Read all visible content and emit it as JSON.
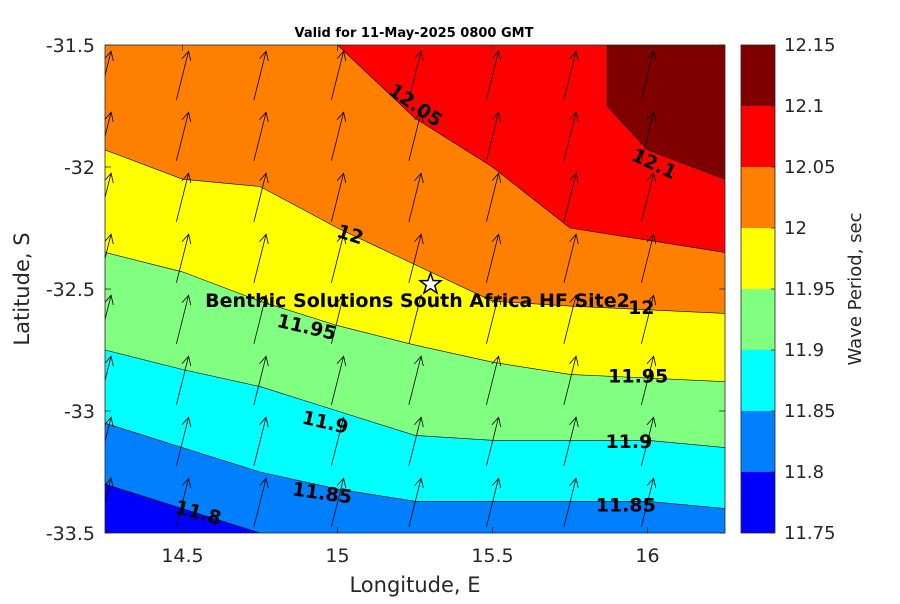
{
  "chart_data": {
    "type": "contour",
    "title": "Valid for 11-May-2025 0800 GMT",
    "xlabel": "Longitude, E",
    "ylabel": "Latitude, S",
    "colorbar_label": "Wave Period, sec",
    "xlim": [
      14.25,
      16.25
    ],
    "ylim": [
      -33.5,
      -31.5
    ],
    "xticks": [
      "14.5",
      "15",
      "15.5",
      "16"
    ],
    "yticks": [
      "-31.5",
      "-32",
      "-32.5",
      "-33",
      "-33.5"
    ],
    "colorbar_ticks": [
      "12.15",
      "12.1",
      "12.05",
      "12",
      "11.95",
      "11.9",
      "11.85",
      "11.8",
      "11.75"
    ],
    "levels": [
      11.75,
      11.8,
      11.85,
      11.9,
      11.95,
      12,
      12.05,
      12.1,
      12.15
    ],
    "level_colors": [
      "#0000ff",
      "#0080ff",
      "#00ffff",
      "#80ff80",
      "#ffff00",
      "#ff8000",
      "#ff0000",
      "#800000"
    ],
    "contours": [
      {
        "level": 11.8,
        "points": [
          [
            14.25,
            -33.3
          ],
          [
            14.75,
            -33.5
          ]
        ]
      },
      {
        "level": 11.85,
        "points": [
          [
            14.25,
            -33.05
          ],
          [
            14.5,
            -33.15
          ],
          [
            14.75,
            -33.25
          ],
          [
            15.0,
            -33.32
          ],
          [
            15.25,
            -33.37
          ],
          [
            15.5,
            -33.37
          ],
          [
            16.0,
            -33.37
          ],
          [
            16.25,
            -33.4
          ]
        ]
      },
      {
        "level": 11.9,
        "points": [
          [
            14.25,
            -32.75
          ],
          [
            14.5,
            -32.83
          ],
          [
            14.75,
            -32.9
          ],
          [
            15.0,
            -33.0
          ],
          [
            15.25,
            -33.1
          ],
          [
            15.5,
            -33.12
          ],
          [
            16.0,
            -33.12
          ],
          [
            16.25,
            -33.15
          ]
        ]
      },
      {
        "level": 11.95,
        "points": [
          [
            14.25,
            -32.35
          ],
          [
            14.5,
            -32.43
          ],
          [
            14.75,
            -32.55
          ],
          [
            15.0,
            -32.65
          ],
          [
            15.25,
            -32.73
          ],
          [
            15.5,
            -32.8
          ],
          [
            15.75,
            -32.85
          ],
          [
            16.25,
            -32.88
          ]
        ]
      },
      {
        "level": 12.0,
        "points": [
          [
            14.25,
            -31.93
          ],
          [
            14.5,
            -32.05
          ],
          [
            14.75,
            -32.08
          ],
          [
            15.0,
            -32.25
          ],
          [
            15.25,
            -32.4
          ],
          [
            15.5,
            -32.55
          ],
          [
            15.75,
            -32.57
          ],
          [
            16.25,
            -32.6
          ]
        ]
      },
      {
        "level": 12.05,
        "points": [
          [
            15.0,
            -31.5
          ],
          [
            15.25,
            -31.8
          ],
          [
            15.5,
            -32.0
          ],
          [
            15.75,
            -32.25
          ],
          [
            16.0,
            -32.3
          ],
          [
            16.25,
            -32.35
          ]
        ]
      },
      {
        "level": 12.1,
        "points": [
          [
            15.87,
            -31.5
          ],
          [
            15.87,
            -31.75
          ],
          [
            16.0,
            -31.93
          ],
          [
            16.25,
            -32.05
          ]
        ]
      }
    ],
    "contour_labels": [
      {
        "text": "12.05",
        "lon": 15.25,
        "lat": -31.75,
        "angle": 35
      },
      {
        "text": "12.1",
        "lon": 16.02,
        "lat": -31.99,
        "angle": 25
      },
      {
        "text": "12",
        "lon": 15.04,
        "lat": -32.28,
        "angle": 18
      },
      {
        "text": "12",
        "lon": 15.98,
        "lat": -32.58,
        "angle": 0
      },
      {
        "text": "11.95",
        "lon": 14.9,
        "lat": -32.66,
        "angle": 13
      },
      {
        "text": "11.95",
        "lon": 15.97,
        "lat": -32.86,
        "angle": 0
      },
      {
        "text": "11.9",
        "lon": 14.96,
        "lat": -33.05,
        "angle": 13
      },
      {
        "text": "11.9",
        "lon": 15.94,
        "lat": -33.13,
        "angle": 0
      },
      {
        "text": "11.85",
        "lon": 14.95,
        "lat": -33.34,
        "angle": 8
      },
      {
        "text": "11.85",
        "lon": 15.93,
        "lat": -33.39,
        "angle": 0
      },
      {
        "text": "11.8",
        "lon": 14.55,
        "lat": -33.42,
        "angle": 15
      }
    ],
    "site": {
      "name": "Benthic Solutions South Africa HF Site2",
      "lon": 15.3,
      "lat": -32.48
    },
    "vectors": {
      "lons": [
        14.25,
        14.5,
        14.75,
        15.0,
        15.25,
        15.5,
        15.75,
        16.0
      ],
      "lats": [
        -31.625,
        -31.875,
        -32.125,
        -32.375,
        -32.625,
        -32.875,
        -33.125,
        -33.375
      ],
      "u": 0.25,
      "v": 1
    }
  }
}
